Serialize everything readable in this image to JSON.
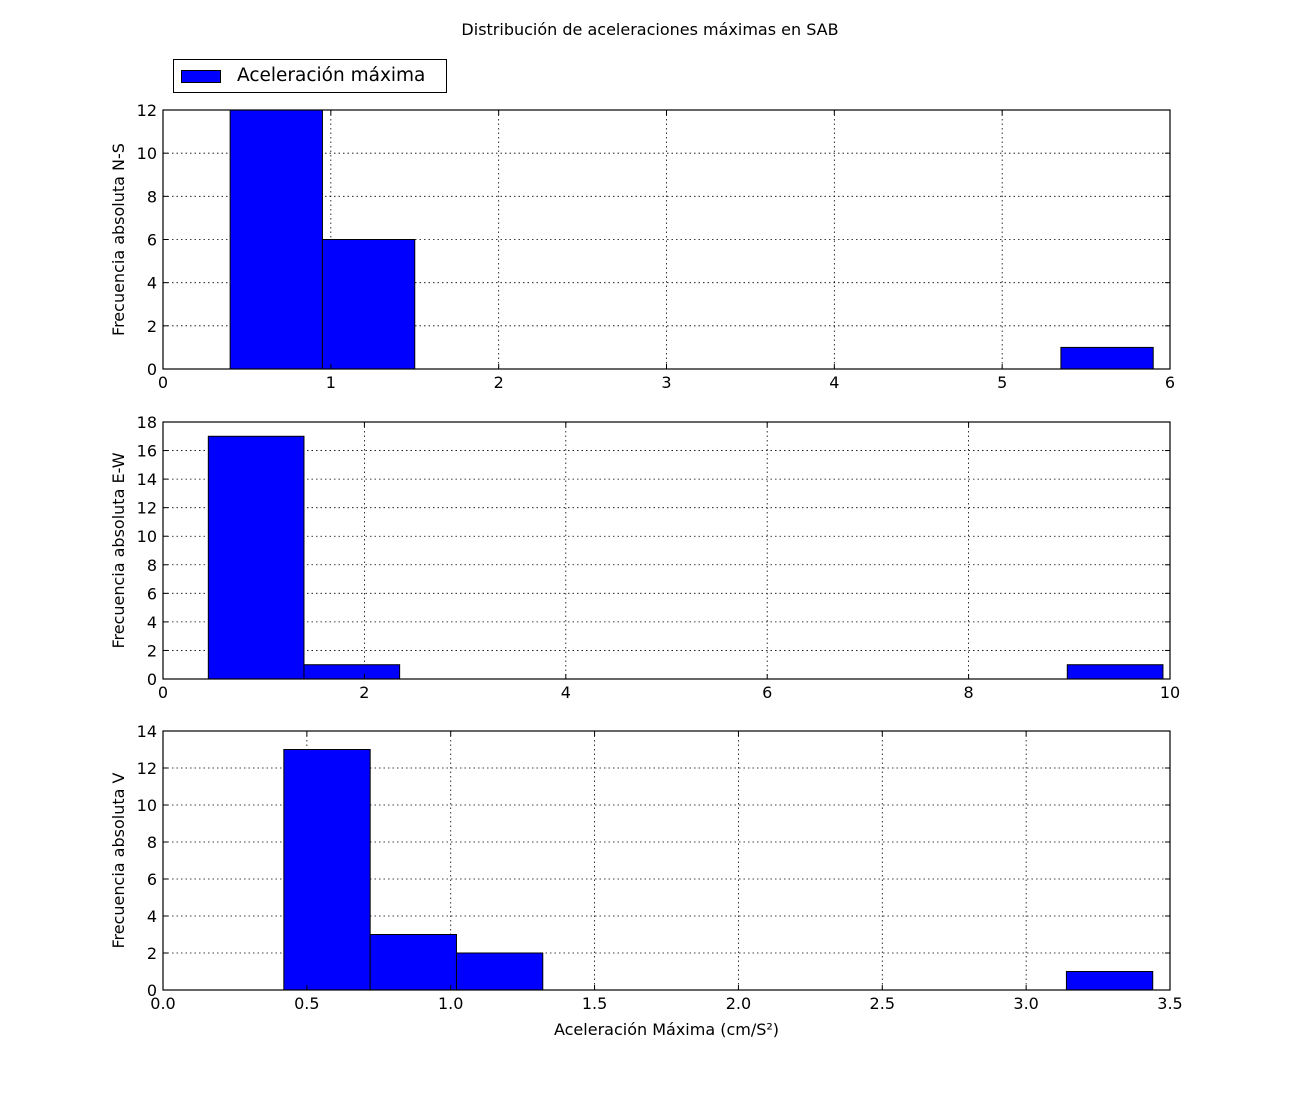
{
  "figure": {
    "suptitle": "Distribución de aceleraciones máximas en SAB",
    "legend_label": "Aceleración máxima",
    "bar_color": "#0000ff",
    "edge_color": "#000000",
    "grid": true,
    "legend_position": "top-left, above first panel"
  },
  "chart_data": [
    {
      "type": "bar",
      "title": "",
      "xlabel": "",
      "ylabel": "Frecuencia absoluta N-S",
      "xlim": [
        0,
        6
      ],
      "ylim": [
        0,
        12
      ],
      "xticks": [
        0,
        1,
        2,
        3,
        4,
        5,
        6
      ],
      "xtick_labels": [
        "0",
        "1",
        "2",
        "3",
        "4",
        "5",
        "6"
      ],
      "yticks": [
        0,
        2,
        4,
        6,
        8,
        10,
        12
      ],
      "ytick_labels": [
        "0",
        "2",
        "4",
        "6",
        "8",
        "10",
        "12"
      ],
      "bins": [
        {
          "x0": 0.4,
          "x1": 0.95,
          "count": 12
        },
        {
          "x0": 0.95,
          "x1": 1.5,
          "count": 6
        },
        {
          "x0": 5.35,
          "x1": 5.9,
          "count": 1
        }
      ]
    },
    {
      "type": "bar",
      "title": "",
      "xlabel": "",
      "ylabel": "Frecuencia absoluta E-W",
      "xlim": [
        0,
        10
      ],
      "ylim": [
        0,
        18
      ],
      "xticks": [
        0,
        2,
        4,
        6,
        8,
        10
      ],
      "xtick_labels": [
        "0",
        "2",
        "4",
        "6",
        "8",
        "10"
      ],
      "yticks": [
        0,
        2,
        4,
        6,
        8,
        10,
        12,
        14,
        16,
        18
      ],
      "ytick_labels": [
        "0",
        "2",
        "4",
        "6",
        "8",
        "10",
        "12",
        "14",
        "16",
        "18"
      ],
      "bins": [
        {
          "x0": 0.45,
          "x1": 1.4,
          "count": 17
        },
        {
          "x0": 1.4,
          "x1": 2.35,
          "count": 1
        },
        {
          "x0": 8.98,
          "x1": 9.93,
          "count": 1
        }
      ]
    },
    {
      "type": "bar",
      "title": "",
      "xlabel": "Aceleración Máxima (cm/S²)",
      "ylabel": "Frecuencia absoluta V",
      "xlim": [
        0,
        3.5
      ],
      "ylim": [
        0,
        14
      ],
      "xticks": [
        0,
        0.5,
        1,
        1.5,
        2,
        2.5,
        3,
        3.5
      ],
      "xtick_labels": [
        "0.0",
        "0.5",
        "1.0",
        "1.5",
        "2.0",
        "2.5",
        "3.0",
        "3.5"
      ],
      "yticks": [
        0,
        2,
        4,
        6,
        8,
        10,
        12,
        14
      ],
      "ytick_labels": [
        "0",
        "2",
        "4",
        "6",
        "8",
        "10",
        "12",
        "14"
      ],
      "bins": [
        {
          "x0": 0.42,
          "x1": 0.72,
          "count": 13
        },
        {
          "x0": 0.72,
          "x1": 1.02,
          "count": 3
        },
        {
          "x0": 1.02,
          "x1": 1.32,
          "count": 2
        },
        {
          "x0": 3.14,
          "x1": 3.44,
          "count": 1
        }
      ]
    }
  ]
}
